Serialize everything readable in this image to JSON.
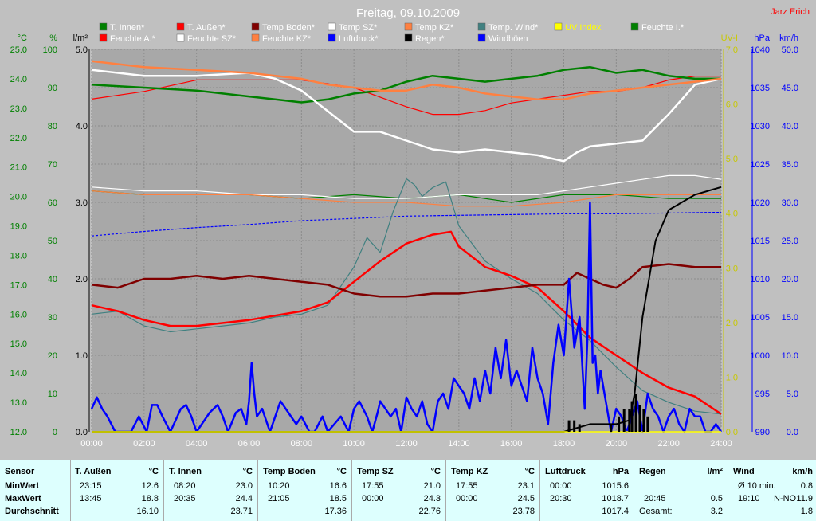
{
  "chart_data": {
    "type": "line",
    "title": "Freitag, 09.10.2009",
    "author": "Jarz Erich",
    "x_ticks": [
      "00:00",
      "02:00",
      "04:00",
      "06:00",
      "08:00",
      "10:00",
      "12:00",
      "14:00",
      "16:00",
      "18:00",
      "20:00",
      "22:00",
      "24:00"
    ],
    "x_range_hours": [
      0,
      24
    ],
    "axes": {
      "temp": {
        "unit": "°C",
        "range": [
          12.0,
          25.0
        ],
        "ticks": [
          "12.0",
          "13.0",
          "14.0",
          "15.0",
          "16.0",
          "17.0",
          "18.0",
          "19.0",
          "20.0",
          "21.0",
          "22.0",
          "23.0",
          "24.0",
          "25.0"
        ],
        "color": "#008000"
      },
      "humidity": {
        "unit": "%",
        "range": [
          0,
          100
        ],
        "ticks": [
          "0",
          "10",
          "20",
          "30",
          "40",
          "50",
          "60",
          "70",
          "80",
          "90",
          "100"
        ],
        "color": "#008000"
      },
      "rain": {
        "unit": "l/m²",
        "range": [
          0,
          5
        ],
        "ticks": [
          "0.0",
          "1.0",
          "2.0",
          "3.0",
          "4.0",
          "5.0"
        ],
        "color": "#000000"
      },
      "uv": {
        "unit": "UV-I",
        "range": [
          0,
          7
        ],
        "ticks": [
          "0.0",
          "1.0",
          "2.0",
          "3.0",
          "4.0",
          "5.0",
          "6.0",
          "7.0"
        ],
        "color": "#c8c800"
      },
      "pressure": {
        "unit": "hPa",
        "range": [
          990,
          1040
        ],
        "ticks": [
          "990",
          "995",
          "1000",
          "1005",
          "1010",
          "1015",
          "1020",
          "1025",
          "1030",
          "1035",
          "1040"
        ],
        "color": "#0000ff"
      },
      "wind": {
        "unit": "km/h",
        "range": [
          0,
          50
        ],
        "ticks": [
          "0.0",
          "5.0",
          "10.0",
          "15.0",
          "20.0",
          "25.0",
          "30.0",
          "35.0",
          "40.0",
          "45.0",
          "50.0"
        ],
        "color": "#0000ff"
      }
    },
    "legend": [
      {
        "name": "T. Innen*",
        "color": "#008000"
      },
      {
        "name": "T. Außen*",
        "color": "#ff0000"
      },
      {
        "name": "Temp Boden*",
        "color": "#800000"
      },
      {
        "name": "Temp SZ*",
        "color": "#ffffff"
      },
      {
        "name": "Temp KZ*",
        "color": "#ff8040"
      },
      {
        "name": "Temp. Wind*",
        "color": "#408080"
      },
      {
        "name": "UV Index",
        "color": "#ffff00"
      },
      {
        "name": "Feuchte I.*",
        "color": "#008000"
      },
      {
        "name": "Feuchte A.*",
        "color": "#ff0000"
      },
      {
        "name": "Feuchte SZ*",
        "color": "#ffffff"
      },
      {
        "name": "Feuchte KZ*",
        "color": "#ff8040"
      },
      {
        "name": "Luftdruck*",
        "color": "#0000ff"
      },
      {
        "name": "Regen*",
        "color": "#000000"
      },
      {
        "name": "Windböen",
        "color": "#0000ff"
      }
    ],
    "series": [
      {
        "name": "T. Innen*",
        "axis": "temp",
        "color": "#008000",
        "width": 2.5,
        "x": [
          0,
          2,
          4,
          6,
          7,
          8,
          9,
          10,
          11,
          12,
          13,
          14,
          15,
          16,
          17,
          18,
          19,
          20,
          21,
          22,
          23,
          24
        ],
        "y": [
          23.8,
          23.7,
          23.6,
          23.4,
          23.3,
          23.2,
          23.3,
          23.5,
          23.6,
          23.9,
          24.1,
          24.0,
          23.9,
          24.0,
          24.1,
          24.3,
          24.4,
          24.2,
          24.3,
          24.1,
          24.0,
          24.0
        ]
      },
      {
        "name": "T. Außen*",
        "axis": "temp",
        "color": "#ff0000",
        "width": 2.5,
        "x": [
          0,
          1,
          2,
          3,
          4,
          6,
          8,
          9,
          10,
          11,
          12,
          13,
          13.7,
          14,
          15,
          16,
          17,
          18,
          19,
          20,
          21,
          22,
          23,
          24
        ],
        "y": [
          16.3,
          16.1,
          15.8,
          15.6,
          15.6,
          15.8,
          16.1,
          16.4,
          17.1,
          17.8,
          18.4,
          18.7,
          18.8,
          18.3,
          17.6,
          17.3,
          16.9,
          16.1,
          15.2,
          14.6,
          14.0,
          13.5,
          13.2,
          12.6
        ]
      },
      {
        "name": "Temp Boden*",
        "axis": "temp",
        "color": "#800000",
        "width": 2.5,
        "x": [
          0,
          1,
          2,
          3,
          4,
          5,
          6,
          7,
          8,
          9,
          10,
          11,
          12,
          13,
          14,
          15,
          16,
          17,
          18,
          18.5,
          19,
          19.5,
          20,
          20.5,
          21,
          22,
          23,
          24
        ],
        "y": [
          17.0,
          16.9,
          17.2,
          17.2,
          17.3,
          17.2,
          17.3,
          17.2,
          17.1,
          17.0,
          16.7,
          16.6,
          16.6,
          16.7,
          16.7,
          16.8,
          16.9,
          17.0,
          17.0,
          17.4,
          17.2,
          17.0,
          16.9,
          17.2,
          17.6,
          17.7,
          17.6,
          17.6
        ]
      },
      {
        "name": "Temp SZ*",
        "axis": "temp",
        "color": "#ffffff",
        "width": 2.5,
        "x": [
          0,
          2,
          4,
          6,
          7,
          8,
          9,
          10,
          11,
          12,
          13,
          14,
          15,
          16,
          17,
          18,
          18.5,
          19,
          20,
          21,
          22,
          23,
          24
        ],
        "y": [
          24.3,
          24.1,
          24.1,
          24.2,
          24.0,
          23.6,
          22.9,
          22.2,
          22.2,
          21.9,
          21.6,
          21.5,
          21.6,
          21.5,
          21.4,
          21.2,
          21.5,
          21.7,
          21.8,
          21.9,
          22.8,
          23.8,
          24.0
        ]
      },
      {
        "name": "Temp KZ*",
        "axis": "temp",
        "color": "#ff8040",
        "width": 2.5,
        "x": [
          0,
          2,
          4,
          6,
          7,
          8,
          9,
          10,
          11,
          12,
          13,
          14,
          15,
          16,
          17,
          18,
          19,
          20,
          21,
          22,
          23,
          24
        ],
        "y": [
          24.6,
          24.4,
          24.3,
          24.2,
          24.1,
          24.0,
          23.8,
          23.7,
          23.6,
          23.6,
          23.8,
          23.7,
          23.5,
          23.4,
          23.3,
          23.3,
          23.5,
          23.6,
          23.7,
          23.8,
          23.9,
          24.0
        ]
      },
      {
        "name": "Temp. Wind*",
        "axis": "temp",
        "color": "#408080",
        "width": 1.2,
        "x": [
          0,
          1,
          2,
          3,
          4,
          5,
          6,
          7,
          8,
          9,
          10,
          10.5,
          11,
          11.5,
          12,
          12.3,
          12.6,
          13,
          13.5,
          14,
          15,
          16,
          17,
          18,
          19,
          20,
          21,
          22,
          23,
          24
        ],
        "y": [
          16.0,
          16.1,
          15.6,
          15.4,
          15.5,
          15.6,
          15.7,
          15.9,
          16.0,
          16.3,
          17.6,
          18.6,
          18.1,
          19.5,
          20.6,
          20.4,
          20.0,
          20.3,
          20.5,
          19.0,
          17.8,
          17.2,
          16.7,
          15.8,
          15.1,
          14.2,
          13.4,
          13.0,
          12.7,
          12.6
        ]
      },
      {
        "name": "Feuchte I.*",
        "axis": "humidity",
        "color": "#008000",
        "width": 1.2,
        "x": [
          0,
          2,
          4,
          6,
          8,
          10,
          12,
          14,
          16,
          18,
          20,
          22,
          24
        ],
        "y": [
          63,
          62,
          62,
          62,
          61,
          62,
          61,
          62,
          60,
          62,
          62,
          61,
          61
        ]
      },
      {
        "name": "Feuchte A.*",
        "axis": "humidity",
        "color": "#ff0000",
        "width": 1.2,
        "x": [
          0,
          2,
          4,
          6,
          8,
          10,
          12,
          13,
          14,
          15,
          16,
          17,
          18,
          19,
          20,
          21,
          22,
          23,
          24
        ],
        "y": [
          87,
          89,
          92,
          92,
          92,
          90,
          85,
          83,
          83,
          84,
          86,
          87,
          88,
          89,
          89,
          90,
          92,
          93,
          93
        ]
      },
      {
        "name": "Feuchte SZ*",
        "axis": "humidity",
        "color": "#ffffff",
        "width": 1.2,
        "x": [
          0,
          2,
          4,
          6,
          8,
          10,
          12,
          14,
          16,
          17,
          18,
          19,
          20,
          21,
          22,
          23,
          24
        ],
        "y": [
          64,
          63,
          63,
          62,
          62,
          61,
          61,
          62,
          62,
          62,
          63,
          64,
          65,
          66,
          67,
          67,
          66
        ]
      },
      {
        "name": "Feuchte KZ*",
        "axis": "humidity",
        "color": "#ff8040",
        "width": 1.2,
        "x": [
          0,
          2,
          4,
          6,
          8,
          10,
          12,
          14,
          16,
          18,
          20,
          22,
          24
        ],
        "y": [
          63,
          62,
          62,
          62,
          61,
          60,
          60,
          59,
          59,
          60,
          62,
          62,
          62
        ]
      },
      {
        "name": "Luftdruck*",
        "axis": "pressure",
        "color": "#0000ff",
        "width": 1.2,
        "dashed": true,
        "x": [
          0,
          2,
          4,
          6,
          8,
          10,
          12,
          14,
          16,
          18,
          20,
          22,
          24
        ],
        "y": [
          1015.6,
          1016.2,
          1016.7,
          1017.1,
          1017.6,
          1017.9,
          1018.2,
          1018.3,
          1018.4,
          1018.5,
          1018.5,
          1018.6,
          1018.7
        ]
      },
      {
        "name": "Regen*",
        "axis": "rain",
        "color": "#000000",
        "width": 2,
        "x": [
          0,
          18,
          18.5,
          19,
          20,
          20.5,
          20.7,
          21,
          21.5,
          22,
          22.5,
          23,
          24
        ],
        "y": [
          0,
          0,
          0.05,
          0.1,
          0.1,
          0.15,
          0.5,
          1.5,
          2.5,
          2.9,
          3.0,
          3.1,
          3.2
        ]
      },
      {
        "name": "UV Index",
        "axis": "uv",
        "color": "#ffff00",
        "width": 1.5,
        "x": [
          0,
          24
        ],
        "y": [
          0,
          0
        ]
      },
      {
        "name": "Windböen",
        "axis": "wind",
        "color": "#0000ff",
        "width": 2.5,
        "x": [
          0,
          0.2,
          0.4,
          0.6,
          0.9,
          1.5,
          1.8,
          2.1,
          2.3,
          2.5,
          2.7,
          3,
          3.4,
          3.6,
          3.8,
          4,
          4.5,
          4.8,
          5,
          5.2,
          5.5,
          5.7,
          5.9,
          6,
          6.1,
          6.2,
          6.3,
          6.5,
          6.8,
          7,
          7.2,
          7.5,
          7.8,
          8,
          8.3,
          8.5,
          8.8,
          9,
          9.5,
          9.8,
          10,
          10.2,
          10.5,
          10.7,
          10.9,
          11,
          11.2,
          11.4,
          11.6,
          11.8,
          12,
          12.2,
          12.4,
          12.6,
          12.8,
          13,
          13.2,
          13.4,
          13.6,
          13.8,
          14,
          14.2,
          14.4,
          14.6,
          14.8,
          15,
          15.2,
          15.4,
          15.6,
          15.8,
          16,
          16.2,
          16.4,
          16.6,
          16.8,
          17,
          17.2,
          17.4,
          17.6,
          17.8,
          18,
          18.2,
          18.4,
          18.6,
          18.8,
          18.9,
          19.0,
          19.1,
          19.2,
          19.3,
          19.4,
          19.6,
          19.8,
          20,
          20.2,
          20.4,
          20.6,
          20.8,
          21,
          21.2,
          21.4,
          21.6,
          21.8,
          22,
          22.2,
          22.4,
          22.6,
          22.8,
          23,
          23.2,
          23.4,
          23.6,
          23.8,
          24
        ],
        "y": [
          3,
          4.5,
          3,
          2,
          0,
          0,
          2,
          0,
          3.5,
          3.5,
          2,
          0,
          3,
          3.5,
          2,
          0,
          2.5,
          3.5,
          2,
          0,
          2.5,
          3,
          1,
          4,
          9,
          5,
          2,
          3,
          0,
          2,
          4,
          2.5,
          1,
          2,
          0,
          0,
          2,
          0,
          2,
          0,
          3,
          4,
          2,
          0,
          2.5,
          4,
          3,
          2,
          3,
          0,
          4.5,
          3,
          2,
          4,
          1,
          0,
          4,
          5,
          3,
          7,
          6,
          5,
          3,
          7,
          4,
          8,
          5,
          11,
          7,
          12,
          6,
          8,
          6,
          4,
          11,
          7,
          5,
          1,
          9,
          14,
          10,
          20,
          11,
          15,
          3,
          12,
          30,
          9,
          10,
          5,
          8,
          4,
          0,
          3,
          2,
          0,
          2,
          4,
          0,
          5,
          3,
          2,
          0,
          2,
          3,
          1,
          0,
          3,
          2,
          2,
          0,
          0,
          1,
          0
        ]
      }
    ]
  },
  "stats": {
    "headers": {
      "sensor": "Sensor",
      "t_aussen": "T. Außen",
      "t_aussen_unit": "°C",
      "t_innen": "T. Innen",
      "t_innen_unit": "°C",
      "temp_boden": "Temp Boden",
      "temp_boden_unit": "°C",
      "temp_sz": "Temp SZ",
      "temp_sz_unit": "°C",
      "temp_kz": "Temp KZ",
      "temp_kz_unit": "°C",
      "luftdruck": "Luftdruck",
      "luftdruck_unit": "hPa",
      "regen": "Regen",
      "regen_unit": "l/m²",
      "wind": "Wind",
      "wind_unit": "km/h"
    },
    "row_labels": {
      "min": "MinWert",
      "max": "MaxWert",
      "avg": "Durchschnitt"
    },
    "t_aussen": {
      "min_time": "23:15",
      "min": "12.6",
      "max_time": "13:45",
      "max": "18.8",
      "avg": "16.10"
    },
    "t_innen": {
      "min_time": "08:20",
      "min": "23.0",
      "max_time": "20:35",
      "max": "24.4",
      "avg": "23.71"
    },
    "temp_boden": {
      "min_time": "10:20",
      "min": "16.6",
      "max_time": "21:05",
      "max": "18.5",
      "avg": "17.36"
    },
    "temp_sz": {
      "min_time": "17:55",
      "min": "21.0",
      "max_time": "00:00",
      "max": "24.3",
      "avg": "22.76"
    },
    "temp_kz": {
      "min_time": "17:55",
      "min": "23.1",
      "max_time": "00:00",
      "max": "24.5",
      "avg": "23.78"
    },
    "luftdruck": {
      "min_time": "00:00",
      "min": "1015.6",
      "max_time": "20:30",
      "max": "1018.7",
      "avg": "1017.4"
    },
    "regen": {
      "max_time": "20:45",
      "max": "0.5",
      "total_label": "Gesamt:",
      "total": "3.2"
    },
    "wind": {
      "avg_label": "Ø 10 min.",
      "avg_value": "0.8",
      "max_time": "19:10",
      "max_dir": "N-NO",
      "max": "11.9",
      "day_avg": "1.8"
    }
  }
}
